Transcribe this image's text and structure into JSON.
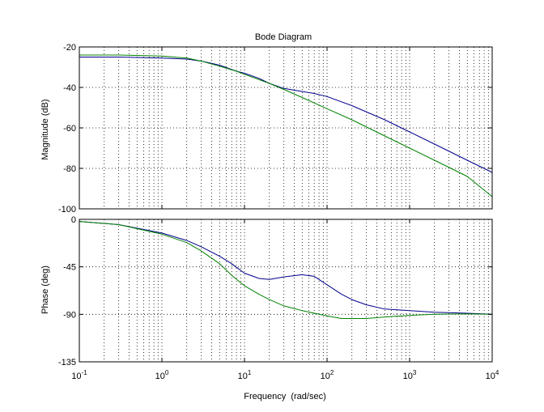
{
  "chart_data": [
    {
      "type": "line",
      "title": "Bode Diagram",
      "ylabel": "Magnitude (dB)",
      "xlabel": "",
      "xscale": "log",
      "xlim": [
        0.1,
        10000
      ],
      "ylim": [
        -100,
        -20
      ],
      "yticks": [
        "-20",
        "-40",
        "-60",
        "-80",
        "-100"
      ],
      "yticks_values": [
        -20,
        -40,
        -60,
        -80,
        -100
      ],
      "grid": true,
      "series": [
        {
          "color": "#00008b",
          "x": [
            0.1,
            0.3,
            1,
            2,
            3,
            5,
            8,
            10,
            15,
            20,
            30,
            50,
            70,
            100,
            200,
            500,
            1000,
            2000,
            5000,
            10000
          ],
          "y": [
            -25,
            -25,
            -25.5,
            -26,
            -27,
            -29,
            -32,
            -33,
            -35.5,
            -38,
            -40.5,
            -42,
            -43,
            -44.5,
            -49,
            -56,
            -62,
            -68,
            -76,
            -82
          ]
        },
        {
          "color": "#008000",
          "x": [
            0.1,
            0.3,
            1,
            2,
            3,
            5,
            8,
            10,
            20,
            30,
            50,
            100,
            200,
            500,
            1000,
            2000,
            5000,
            10000
          ],
          "y": [
            -24,
            -24,
            -24.5,
            -25.5,
            -27,
            -29.5,
            -32,
            -33.5,
            -38,
            -41,
            -45,
            -50.5,
            -56,
            -64,
            -70,
            -76,
            -84,
            -94
          ]
        }
      ]
    },
    {
      "type": "line",
      "title": "",
      "ylabel": "Phase (deg)",
      "xlabel": "Frequency  (rad/sec)",
      "xscale": "log",
      "xlim": [
        0.1,
        10000
      ],
      "ylim": [
        -135,
        0
      ],
      "yticks": [
        "0",
        "-45",
        "-90",
        "-135"
      ],
      "yticks_values": [
        0,
        -45,
        -90,
        -135
      ],
      "xticks": [
        {
          "base": "10",
          "exp": "-1",
          "value": 0.1
        },
        {
          "base": "10",
          "exp": "0",
          "value": 1
        },
        {
          "base": "10",
          "exp": "1",
          "value": 10
        },
        {
          "base": "10",
          "exp": "2",
          "value": 100
        },
        {
          "base": "10",
          "exp": "3",
          "value": 1000
        },
        {
          "base": "10",
          "exp": "4",
          "value": 10000
        }
      ],
      "grid": true,
      "series": [
        {
          "color": "#00008b",
          "x": [
            0.1,
            0.3,
            1,
            2,
            3,
            5,
            7,
            10,
            15,
            20,
            30,
            50,
            70,
            100,
            150,
            200,
            300,
            500,
            1000,
            2000,
            5000,
            10000
          ],
          "y": [
            -2,
            -5,
            -13,
            -20,
            -26,
            -35,
            -42,
            -51,
            -56,
            -57,
            -54.5,
            -52.5,
            -54,
            -62,
            -71,
            -76,
            -81,
            -85,
            -86.5,
            -88,
            -89,
            -90
          ]
        },
        {
          "color": "#008000",
          "x": [
            0.1,
            0.3,
            1,
            2,
            3,
            5,
            7,
            10,
            15,
            20,
            30,
            50,
            100,
            150,
            200,
            300,
            500,
            1000,
            2000,
            5000,
            10000
          ],
          "y": [
            -2,
            -5,
            -14,
            -22,
            -30,
            -42,
            -53,
            -63,
            -71,
            -76,
            -82,
            -86.5,
            -91.5,
            -94,
            -94,
            -94,
            -92.5,
            -91,
            -90,
            -89.5,
            -90
          ]
        }
      ]
    }
  ]
}
